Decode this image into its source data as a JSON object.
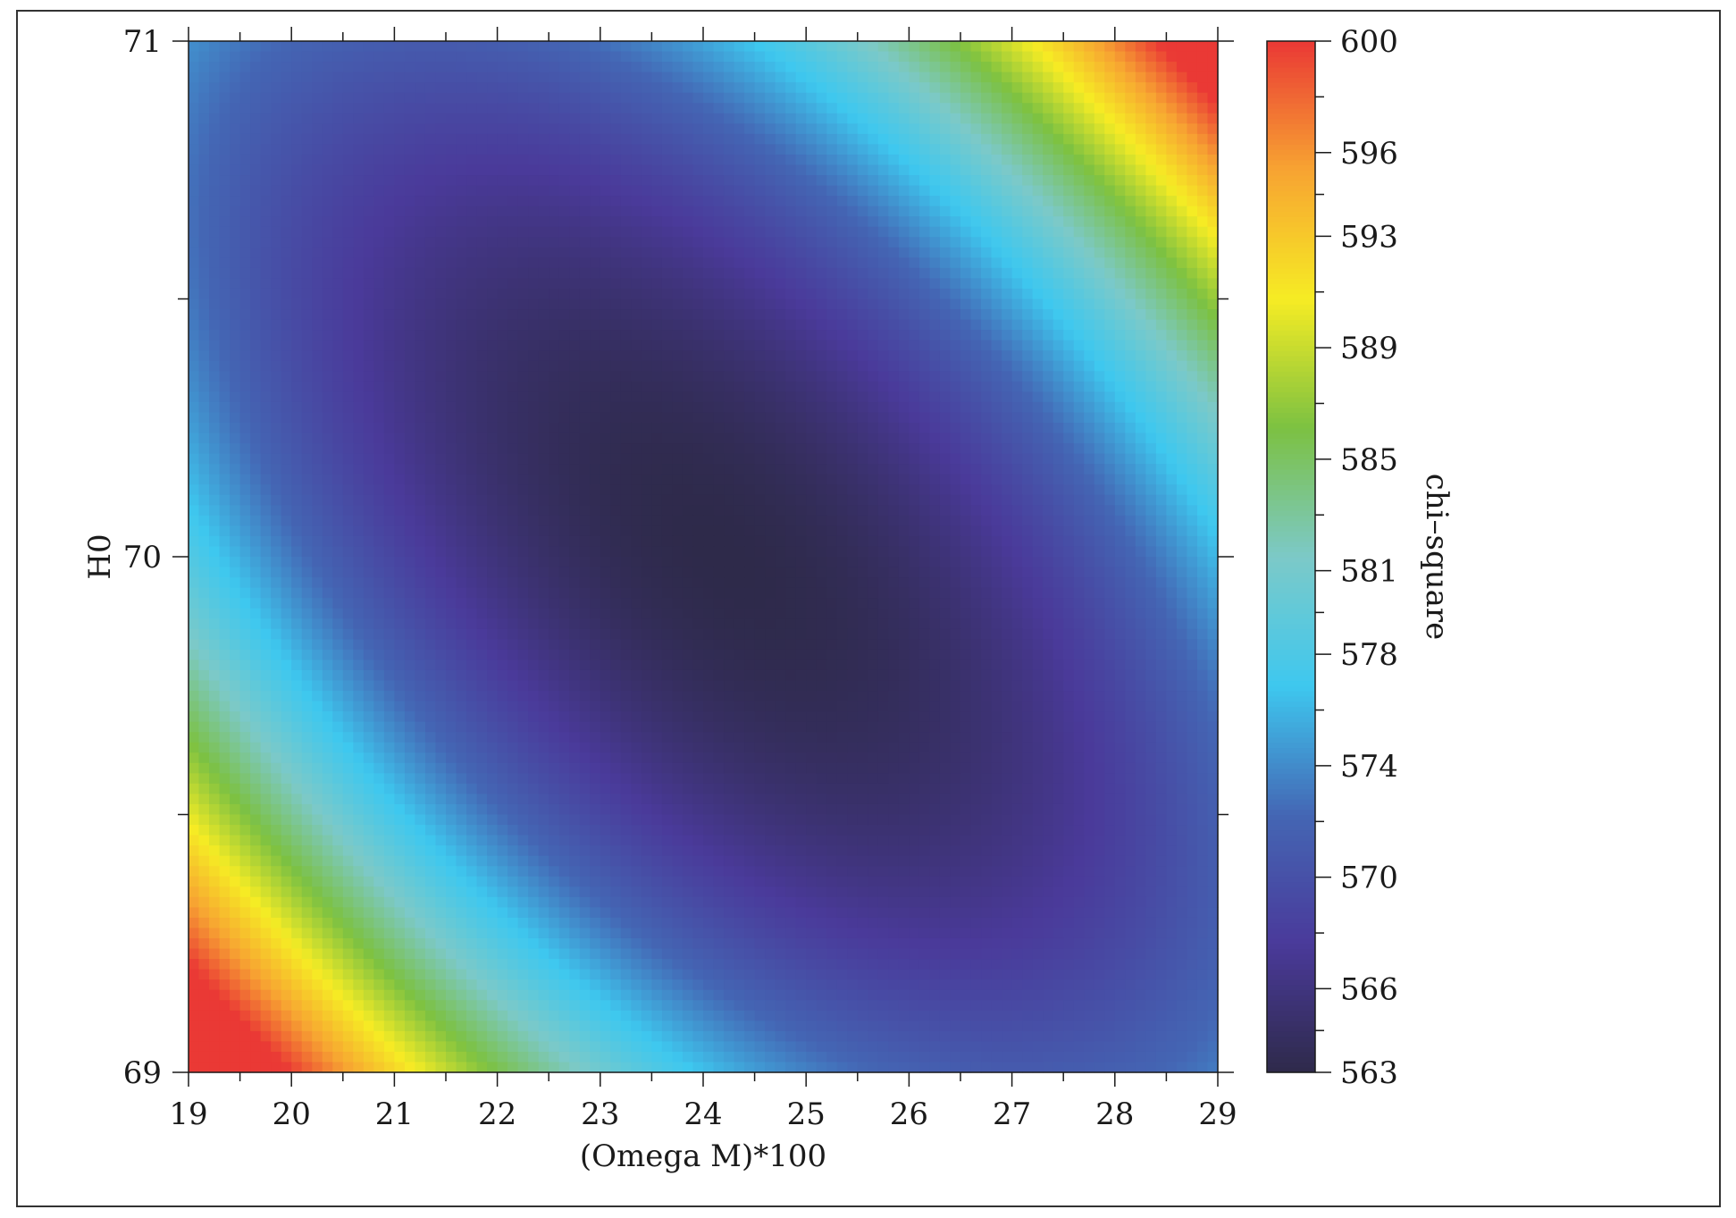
{
  "chart_data": {
    "type": "heatmap",
    "title": "",
    "xlabel": "(Omega M)*100",
    "ylabel": "H0",
    "colorbar_label": "chi–square",
    "x_range": [
      19,
      29
    ],
    "y_range": [
      69,
      71
    ],
    "x_ticks": [
      19,
      20,
      21,
      22,
      23,
      24,
      25,
      26,
      27,
      28,
      29
    ],
    "x_tick_labels": [
      "19",
      "20",
      "21",
      "22",
      "23",
      "24",
      "25",
      "26",
      "27",
      "28",
      "29"
    ],
    "y_ticks": [
      69,
      70,
      71
    ],
    "y_tick_labels": [
      "69",
      "70",
      "71"
    ],
    "color_range": [
      563,
      600
    ],
    "colorbar_ticks": [
      563,
      566,
      570,
      574,
      578,
      581,
      585,
      589,
      593,
      596,
      600
    ],
    "colorbar_tick_labels": [
      "563",
      "566",
      "570",
      "574",
      "578",
      "581",
      "585",
      "589",
      "593",
      "596",
      "600"
    ],
    "grid_resolution": [
      100,
      100
    ],
    "minimum": {
      "x": 24.2,
      "y": 70.0,
      "value": 563
    },
    "grid": false,
    "colormap": [
      "#2e2a4a",
      "#4a3a9a",
      "#4466b4",
      "#3ec8ef",
      "#7cc9c8",
      "#7cc142",
      "#f6ec24",
      "#f7a432",
      "#ea3935"
    ]
  }
}
